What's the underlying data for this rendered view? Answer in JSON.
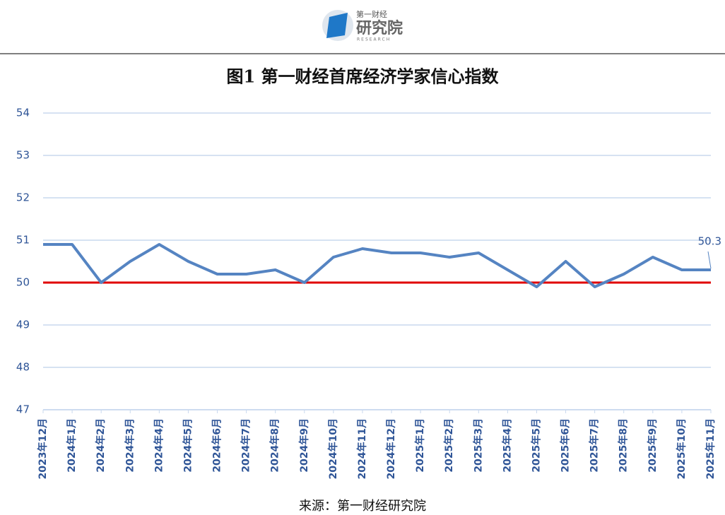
{
  "header": {
    "logo_top": "第一财经",
    "logo_main": "研究院",
    "logo_sub": "RESEARCH"
  },
  "chart_data": {
    "type": "line",
    "title": "图1  第一财经首席经济学家信心指数",
    "source": "来源：第一财经研究院",
    "categories": [
      "2023年12月",
      "2024年1月",
      "2024年2月",
      "2024年3月",
      "2024年4月",
      "2024年5月",
      "2024年6月",
      "2024年7月",
      "2024年8月",
      "2024年9月",
      "2024年10月",
      "2024年11月",
      "2024年12月",
      "2025年1月",
      "2025年2月",
      "2025年3月",
      "2025年4月",
      "2025年5月",
      "2025年6月",
      "2025年7月",
      "2025年8月",
      "2025年9月",
      "2025年10月",
      "2025年11月"
    ],
    "series": [
      {
        "color": "#5584c2",
        "values": [
          50.9,
          50.9,
          50.0,
          50.5,
          50.9,
          50.5,
          50.2,
          50.2,
          50.3,
          50.0,
          50.6,
          50.8,
          50.7,
          50.7,
          50.6,
          50.7,
          50.3,
          49.9,
          50.5,
          49.9,
          50.2,
          50.6,
          50.3,
          50.3
        ],
        "value_labels": [
          null,
          null,
          null,
          null,
          null,
          null,
          null,
          null,
          null,
          null,
          null,
          null,
          null,
          null,
          null,
          null,
          null,
          null,
          null,
          null,
          null,
          null,
          null,
          "50.3"
        ]
      }
    ],
    "reference_line": {
      "value": 50,
      "color": "#e00000"
    },
    "ylim": [
      47,
      54
    ],
    "yticks": [
      47,
      48,
      49,
      50,
      51,
      52,
      53,
      54
    ],
    "grid": true
  }
}
